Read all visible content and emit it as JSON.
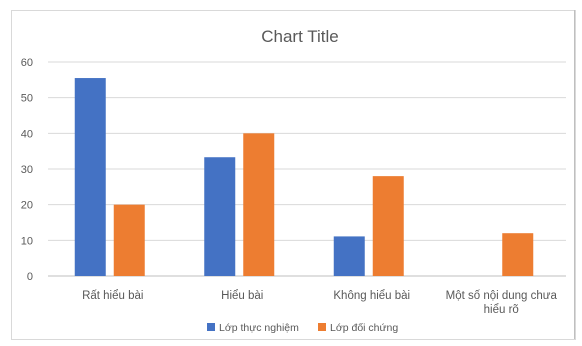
{
  "chart_data": {
    "type": "bar",
    "title": "Chart Title",
    "categories": [
      "Rất hiểu bài",
      "Hiểu bài",
      "Không hiểu bài",
      "Một số nội dung chưa hiểu rõ"
    ],
    "category_lines": [
      [
        "Rất hiểu bài"
      ],
      [
        "Hiểu bài"
      ],
      [
        "Không hiểu bài"
      ],
      [
        "Một số nội dung chưa",
        "hiểu rõ"
      ]
    ],
    "series": [
      {
        "name": "Lớp thực nghiệm",
        "color": "#4472C4",
        "values": [
          55.5,
          33.3,
          11.1,
          0
        ]
      },
      {
        "name": "Lớp đối chứng",
        "color": "#ED7D31",
        "values": [
          20,
          40,
          28,
          12
        ]
      }
    ],
    "ylim": [
      0,
      60
    ],
    "yticks": [
      0,
      10,
      20,
      30,
      40,
      50,
      60
    ],
    "xlabel": "",
    "ylabel": "",
    "grid": true,
    "legend_position": "bottom"
  }
}
